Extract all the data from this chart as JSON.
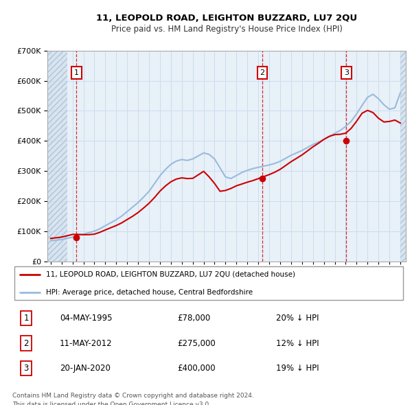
{
  "title": "11, LEOPOLD ROAD, LEIGHTON BUZZARD, LU7 2QU",
  "subtitle": "Price paid vs. HM Land Registry's House Price Index (HPI)",
  "legend_label_red": "11, LEOPOLD ROAD, LEIGHTON BUZZARD, LU7 2QU (detached house)",
  "legend_label_blue": "HPI: Average price, detached house, Central Bedfordshire",
  "footer": "Contains HM Land Registry data © Crown copyright and database right 2024.\nThis data is licensed under the Open Government Licence v3.0.",
  "ylim": [
    0,
    700000
  ],
  "yticks": [
    0,
    100000,
    200000,
    300000,
    400000,
    500000,
    600000,
    700000
  ],
  "ytick_labels": [
    "£0",
    "£100K",
    "£200K",
    "£300K",
    "£400K",
    "£500K",
    "£600K",
    "£700K"
  ],
  "xlim_start": 1992.7,
  "xlim_end": 2025.5,
  "hatch_left_end": 1994.5,
  "hatch_right_start": 2025.0,
  "sales": [
    {
      "num": 1,
      "year": 1995.35,
      "price": 78000,
      "date": "04-MAY-1995",
      "price_str": "£78,000",
      "pct": "20%",
      "dir": "↓"
    },
    {
      "num": 2,
      "year": 2012.37,
      "price": 275000,
      "date": "11-MAY-2012",
      "price_str": "£275,000",
      "pct": "12%",
      "dir": "↓"
    },
    {
      "num": 3,
      "year": 2020.05,
      "price": 400000,
      "date": "20-JAN-2020",
      "price_str": "£400,000",
      "pct": "19%",
      "dir": "↓"
    }
  ],
  "red_color": "#cc0000",
  "blue_color": "#99bbdd",
  "grid_color": "#ccddee",
  "plot_bg": "#e8f0f8",
  "hatch_bg": "#d8e4f0",
  "hpi_years": [
    1993,
    1993.5,
    1994,
    1994.5,
    1995,
    1995.5,
    1996,
    1996.5,
    1997,
    1997.5,
    1998,
    1998.5,
    1999,
    1999.5,
    2000,
    2000.5,
    2001,
    2001.5,
    2002,
    2002.5,
    2003,
    2003.5,
    2004,
    2004.5,
    2005,
    2005.5,
    2006,
    2006.5,
    2007,
    2007.5,
    2008,
    2008.5,
    2009,
    2009.5,
    2010,
    2010.5,
    2011,
    2011.5,
    2012,
    2012.5,
    2013,
    2013.5,
    2014,
    2014.5,
    2015,
    2015.5,
    2016,
    2016.5,
    2017,
    2017.5,
    2018,
    2018.5,
    2019,
    2019.5,
    2020,
    2020.5,
    2021,
    2021.5,
    2022,
    2022.5,
    2023,
    2023.5,
    2024,
    2024.5,
    2025
  ],
  "hpi_values": [
    68000,
    70000,
    72000,
    76000,
    80000,
    85000,
    90000,
    95000,
    100000,
    108000,
    118000,
    128000,
    138000,
    150000,
    165000,
    180000,
    195000,
    213000,
    232000,
    258000,
    284000,
    305000,
    322000,
    333000,
    338000,
    335000,
    340000,
    350000,
    360000,
    355000,
    340000,
    310000,
    280000,
    275000,
    285000,
    295000,
    302000,
    308000,
    312000,
    316000,
    320000,
    325000,
    332000,
    342000,
    352000,
    360000,
    368000,
    378000,
    388000,
    396000,
    405000,
    415000,
    425000,
    435000,
    448000,
    465000,
    490000,
    518000,
    545000,
    555000,
    540000,
    520000,
    505000,
    510000,
    560000
  ],
  "red_hpi_years": [
    1993,
    1993.5,
    1994,
    1994.5,
    1995,
    1995.5,
    1996,
    1996.5,
    1997,
    1997.5,
    1998,
    1998.5,
    1999,
    1999.5,
    2000,
    2000.5,
    2001,
    2001.5,
    2002,
    2002.5,
    2003,
    2003.5,
    2004,
    2004.5,
    2005,
    2005.5,
    2006,
    2006.5,
    2007,
    2007.5,
    2008,
    2008.5,
    2009,
    2009.5,
    2010,
    2010.5,
    2011,
    2011.5,
    2012,
    2012.5,
    2013,
    2013.5,
    2014,
    2014.5,
    2015,
    2015.5,
    2016,
    2016.5,
    2017,
    2017.5,
    2018,
    2018.5,
    2019,
    2019.5,
    2020,
    2020.5,
    2021,
    2021.5,
    2022,
    2022.5,
    2023,
    2023.5,
    2024,
    2024.5,
    2025
  ],
  "red_ratios": [
    1.114,
    1.114,
    1.114,
    1.114,
    1.114,
    1.05,
    0.98,
    0.93,
    0.9,
    0.89,
    0.88,
    0.87,
    0.86,
    0.85,
    0.84,
    0.83,
    0.83,
    0.83,
    0.83,
    0.82,
    0.82,
    0.82,
    0.82,
    0.82,
    0.82,
    0.82,
    0.81,
    0.82,
    0.83,
    0.79,
    0.76,
    0.75,
    0.84,
    0.88,
    0.88,
    0.87,
    0.87,
    0.87,
    0.88,
    0.89,
    0.9,
    0.91,
    0.92,
    0.93,
    0.94,
    0.95,
    0.96,
    0.97,
    0.98,
    0.99,
    1.0,
    1.0,
    0.99,
    0.97,
    0.95,
    0.95,
    0.95,
    0.95,
    0.92,
    0.89,
    0.88,
    0.89,
    0.92,
    0.92,
    0.82
  ]
}
